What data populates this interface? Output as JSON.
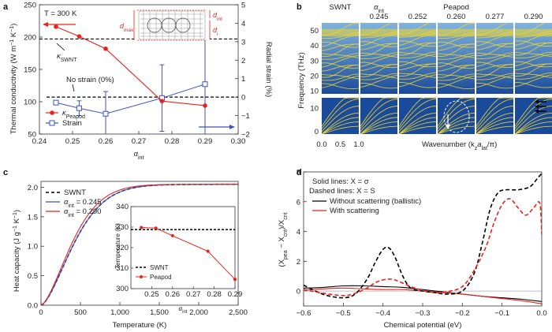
{
  "panels": {
    "a": {
      "letter": "a"
    },
    "b": {
      "letter": "b"
    },
    "c": {
      "letter": "c"
    },
    "d": {
      "letter": "d"
    }
  },
  "chart_data": [
    {
      "id": "a",
      "type": "line",
      "annotation_T": "T = 300 K",
      "xlabel": "α",
      "xlabel_sub": "int",
      "ylabel_left": "Thermal conductivity (W m",
      "ylabel_left_sup": "−1",
      "ylabel_left_mid": " K",
      "ylabel_left_sup2": "−1",
      "ylabel_left_end": ")",
      "ylabel_right": "Radial strain (%)",
      "xlim": [
        0.24,
        0.3
      ],
      "ylim_left": [
        50,
        250
      ],
      "ylim_right": [
        -2,
        5
      ],
      "xticks": [
        "0.24",
        "0.25",
        "0.26",
        "0.27",
        "0.28",
        "0.29",
        "0.30"
      ],
      "yticks_left": [
        "50",
        "100",
        "150",
        "200",
        "250"
      ],
      "yticks_right": [
        "−2",
        "−1",
        "0",
        "1",
        "2",
        "3",
        "4",
        "5"
      ],
      "kappa_swnt": 197,
      "kappa_swnt_label": "κ",
      "kappa_swnt_label_sub": "SWNT",
      "no_strain_label": "No strain (0%)",
      "inset_labels": {
        "dmax": "d",
        "dmax_sub": "max",
        "dint": "d",
        "dint_sub": "int",
        "di": "d",
        "di_sub": "i"
      },
      "series": [
        {
          "name": "κ",
          "name_sub": "Peapod",
          "color": "#e8211d",
          "x": [
            0.245,
            0.252,
            0.26,
            0.277,
            0.29
          ],
          "y": [
            216,
            201,
            182,
            101,
            94
          ]
        },
        {
          "name": "Strain",
          "color": "#3c52c4",
          "x": [
            0.245,
            0.252,
            0.26,
            0.277,
            0.29
          ],
          "y_right": [
            -0.3,
            -0.6,
            -0.9,
            -0.05,
            0.7
          ],
          "err": [
            0.1,
            0.4,
            1.2,
            1.8,
            2.8
          ]
        }
      ],
      "legend": "bottom-left"
    },
    {
      "id": "b",
      "type": "heatmap",
      "columns": [
        {
          "top": "SWNT",
          "bottom": ""
        },
        {
          "top": "α",
          "top_sub": "int",
          "bottom": "0.245"
        },
        {
          "top": "",
          "bottom": "0.252"
        },
        {
          "top": "Peapod",
          "bottom": "0.260"
        },
        {
          "top": "",
          "bottom": "0.277"
        },
        {
          "top": "",
          "bottom": "0.290"
        }
      ],
      "ylabel": "Frequency (THz)",
      "yticks_top": [
        "10",
        "20",
        "30",
        "40",
        "50"
      ],
      "yticks_bottom": [
        "0",
        "10"
      ],
      "xticks": [
        "0.0",
        "0.5",
        "1.0"
      ],
      "xlabel": "Wavenumber (k",
      "xlabel_sub": "z",
      "xlabel_mid": "a",
      "xlabel_sub2": "lat",
      "xlabel_end": "/π)",
      "colors": {
        "bg": "#1a4a9a",
        "band": "#f5d823"
      }
    },
    {
      "id": "c",
      "type": "line",
      "xlabel": "Temperature (K)",
      "ylabel": "Heat capacity (J g",
      "ylabel_sup": "−1",
      "ylabel_mid": " K",
      "ylabel_sup2": "−1",
      "ylabel_end": ")",
      "xlim": [
        0,
        2500
      ],
      "ylim": [
        0,
        2.0
      ],
      "xticks": [
        "0",
        "500",
        "1,000",
        "1,500",
        "2,000",
        "2,500"
      ],
      "yticks": [
        "0.0",
        "0.5",
        "1.0",
        "1.5",
        "2.0"
      ],
      "legend": [
        "SWNT",
        "α",
        "α"
      ],
      "legend_sub": [
        "",
        "int",
        "int"
      ],
      "legend_val": [
        "",
        " = 0.245",
        " = 0.290"
      ],
      "series": [
        {
          "color": "#000000",
          "dash": "4,3",
          "scale": 1.0
        },
        {
          "color": "#3c52c4",
          "dash": "",
          "scale": 1.0
        },
        {
          "color": "#e8211d",
          "dash": "",
          "scale": 1.07
        }
      ],
      "inset": {
        "ylabel": "Temperature (K)",
        "xlabel": "α",
        "xlabel_sub": "int",
        "xlim": [
          0.24,
          0.29
        ],
        "ylim": [
          300,
          340
        ],
        "xticks": [
          "0.25",
          "0.26",
          "0.27",
          "0.28",
          "0.29"
        ],
        "yticks": [
          "300",
          "310",
          "320",
          "330",
          "340"
        ],
        "swnt_value": 328.8,
        "legend": [
          "SWNT",
          "Peapod"
        ],
        "peapod_x": [
          0.245,
          0.252,
          0.26,
          0.277,
          0.29
        ],
        "peapod_y": [
          329.8,
          329.5,
          325.8,
          318.2,
          304.5
        ]
      }
    },
    {
      "id": "d",
      "type": "line",
      "xlabel": "Chemical potential (eV)",
      "ylabel": "(X",
      "ylabel_sub": "pea",
      "ylabel_mid": " − X",
      "ylabel_sub2": "cnt",
      "ylabel_mid2": ")/X",
      "ylabel_sub3": "cnt",
      "xlim": [
        -0.6,
        0.0
      ],
      "ylim": [
        -1,
        8
      ],
      "xticks": [
        "−0.6",
        "−0.5",
        "−0.4",
        "−0.3",
        "−0.2",
        "−0.1",
        "0.0"
      ],
      "yticks": [
        "0",
        "2",
        "4",
        "6",
        "8"
      ],
      "legend_note1": "Solid lines: X = σ",
      "legend_note2": "Dashed lines: X = S",
      "legend": [
        "Without scattering (ballistic)",
        "With scattering"
      ],
      "series": [
        {
          "name": "solid-ballistic",
          "color": "#000000",
          "dash": "",
          "x": [
            -0.6,
            -0.55,
            -0.5,
            -0.45,
            -0.4,
            -0.35,
            -0.3,
            -0.25,
            -0.2,
            -0.15,
            -0.1,
            -0.05,
            0.0
          ],
          "y": [
            0.2,
            0.25,
            0.35,
            0.35,
            0.3,
            0.25,
            0.1,
            -0.05,
            -0.2,
            -0.35,
            -0.45,
            -0.55,
            -0.7
          ]
        },
        {
          "name": "solid-scattering",
          "color": "#e8211d",
          "dash": "",
          "x": [
            -0.6,
            -0.55,
            -0.5,
            -0.45,
            -0.4,
            -0.35,
            -0.3,
            -0.25,
            -0.2,
            -0.15,
            -0.1,
            -0.05,
            0.0
          ],
          "y": [
            0.05,
            0.15,
            0.2,
            0.15,
            0.1,
            0.1,
            0.0,
            -0.1,
            -0.2,
            -0.35,
            -0.5,
            -0.65,
            -0.85
          ]
        },
        {
          "name": "dashed-ballistic",
          "color": "#000000",
          "dash": "5,3",
          "x": [
            -0.6,
            -0.57,
            -0.54,
            -0.5,
            -0.47,
            -0.44,
            -0.42,
            -0.4,
            -0.385,
            -0.37,
            -0.35,
            -0.33,
            -0.3,
            -0.27,
            -0.24,
            -0.2,
            -0.17,
            -0.15,
            -0.13,
            -0.11,
            -0.09,
            -0.06,
            -0.03,
            -0.01,
            0.0
          ],
          "y": [
            0.4,
            0.0,
            -0.3,
            -0.45,
            -0.2,
            0.8,
            1.9,
            2.8,
            2.9,
            2.3,
            1.0,
            0.2,
            0.0,
            -0.1,
            -0.2,
            0.0,
            1.2,
            3.2,
            5.5,
            6.6,
            6.8,
            6.8,
            7.0,
            7.6,
            7.9
          ]
        },
        {
          "name": "dashed-scattering",
          "color": "#e8211d",
          "dash": "5,3",
          "x": [
            -0.6,
            -0.55,
            -0.5,
            -0.47,
            -0.44,
            -0.42,
            -0.4,
            -0.38,
            -0.36,
            -0.33,
            -0.3,
            -0.27,
            -0.24,
            -0.2,
            -0.17,
            -0.14,
            -0.12,
            -0.1,
            -0.08,
            -0.06,
            -0.04,
            -0.02,
            -0.005,
            0.0
          ],
          "y": [
            0.1,
            -0.15,
            -0.3,
            -0.15,
            0.2,
            0.55,
            0.75,
            0.8,
            0.65,
            0.3,
            0.05,
            -0.1,
            -0.05,
            0.3,
            1.4,
            3.0,
            4.6,
            5.8,
            6.2,
            5.6,
            5.1,
            5.6,
            5.9,
            3.8
          ]
        }
      ]
    }
  ]
}
